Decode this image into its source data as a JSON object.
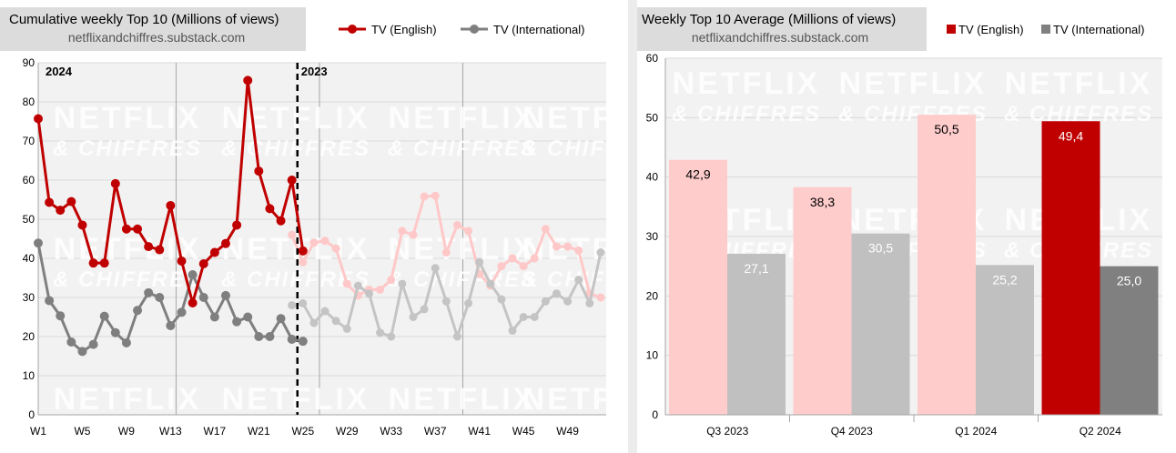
{
  "chart_data": [
    {
      "type": "line",
      "title": "Cumulative weekly Top 10 (Millions of views)",
      "subtitle": "netflixandchiffres.substack.com",
      "xlabel": "",
      "ylabel": "",
      "ylim": [
        0,
        90
      ],
      "y_ticks": [
        0,
        10,
        20,
        30,
        40,
        50,
        60,
        70,
        80,
        90
      ],
      "x_tick_labels": [
        "W1",
        "W5",
        "W9",
        "W13",
        "W17",
        "W21",
        "W25",
        "W29",
        "W33",
        "W37",
        "W41",
        "W45",
        "W49"
      ],
      "x_tick_weeks": [
        1,
        5,
        9,
        13,
        17,
        21,
        25,
        29,
        33,
        37,
        41,
        45,
        49
      ],
      "annotations": [
        {
          "text": "2024",
          "week": 1
        },
        {
          "text": "2023",
          "week": 24.5
        }
      ],
      "grid": true,
      "legend": "top-right",
      "series": [
        {
          "name": "TV (English)",
          "color": "#c00000",
          "faded_color": "#ffc8c8",
          "current_year": [
            [
              1,
              75.7
            ],
            [
              2,
              54.3
            ],
            [
              3,
              52.3
            ],
            [
              4,
              54.5
            ],
            [
              5,
              48.5
            ],
            [
              6,
              38.8
            ],
            [
              7,
              38.8
            ],
            [
              8,
              59.1
            ],
            [
              9,
              47.5
            ],
            [
              10,
              47.5
            ],
            [
              11,
              43.0
            ],
            [
              12,
              42.2
            ],
            [
              13,
              53.5
            ],
            [
              14,
              39.3
            ],
            [
              15,
              28.6
            ],
            [
              16,
              38.6
            ],
            [
              17,
              41.5
            ],
            [
              18,
              43.8
            ],
            [
              19,
              48.5
            ],
            [
              20,
              85.5
            ],
            [
              21,
              62.3
            ],
            [
              22,
              52.7
            ],
            [
              23,
              49.6
            ],
            [
              24,
              60.0
            ],
            [
              25,
              41.9
            ]
          ],
          "previous_year": [
            [
              24,
              46.0
            ],
            [
              25,
              39.0
            ],
            [
              26,
              44.0
            ],
            [
              27,
              44.5
            ],
            [
              28,
              42.5
            ],
            [
              29,
              33.5
            ],
            [
              30,
              30.5
            ],
            [
              31,
              32.0
            ],
            [
              32,
              32.0
            ],
            [
              33,
              34.5
            ],
            [
              34,
              47.0
            ],
            [
              35,
              46.0
            ],
            [
              36,
              55.8
            ],
            [
              37,
              56.0
            ],
            [
              38,
              41.5
            ],
            [
              39,
              48.5
            ],
            [
              40,
              47.0
            ],
            [
              41,
              36.0
            ],
            [
              42,
              33.0
            ],
            [
              43,
              38.0
            ],
            [
              44,
              40.0
            ],
            [
              45,
              38.0
            ],
            [
              46,
              40.0
            ],
            [
              47,
              47.5
            ],
            [
              48,
              43.0
            ],
            [
              49,
              43.0
            ],
            [
              50,
              42.0
            ],
            [
              51,
              31.0
            ],
            [
              52,
              30.0
            ]
          ]
        },
        {
          "name": "TV (International)",
          "color": "#7f7f7f",
          "faded_color": "#c4c4c4",
          "current_year": [
            [
              1,
              43.9
            ],
            [
              2,
              29.2
            ],
            [
              3,
              25.3
            ],
            [
              4,
              18.6
            ],
            [
              5,
              16.2
            ],
            [
              6,
              18.0
            ],
            [
              7,
              25.2
            ],
            [
              8,
              21.0
            ],
            [
              9,
              18.4
            ],
            [
              10,
              26.7
            ],
            [
              11,
              31.2
            ],
            [
              12,
              30.0
            ],
            [
              13,
              22.8
            ],
            [
              14,
              26.2
            ],
            [
              15,
              35.8
            ],
            [
              16,
              30.0
            ],
            [
              17,
              25.0
            ],
            [
              18,
              30.5
            ],
            [
              19,
              23.8
            ],
            [
              20,
              25.0
            ],
            [
              21,
              20.0
            ],
            [
              22,
              20.0
            ],
            [
              23,
              24.6
            ],
            [
              24,
              19.3
            ],
            [
              25,
              18.8
            ]
          ],
          "previous_year": [
            [
              24,
              28.0
            ],
            [
              25,
              28.5
            ],
            [
              26,
              23.5
            ],
            [
              27,
              26.5
            ],
            [
              28,
              24.0
            ],
            [
              29,
              22.0
            ],
            [
              30,
              33.0
            ],
            [
              31,
              31.0
            ],
            [
              32,
              21.0
            ],
            [
              33,
              20.0
            ],
            [
              34,
              33.5
            ],
            [
              35,
              25.0
            ],
            [
              36,
              27.0
            ],
            [
              37,
              37.5
            ],
            [
              38,
              29.0
            ],
            [
              39,
              20.0
            ],
            [
              40,
              28.5
            ],
            [
              41,
              39.0
            ],
            [
              42,
              33.5
            ],
            [
              43,
              29.5
            ],
            [
              44,
              21.5
            ],
            [
              45,
              25.0
            ],
            [
              46,
              25.0
            ],
            [
              47,
              29.0
            ],
            [
              48,
              31.0
            ],
            [
              49,
              29.0
            ],
            [
              50,
              34.5
            ],
            [
              51,
              28.5
            ],
            [
              52,
              41.5
            ]
          ]
        }
      ]
    },
    {
      "type": "bar",
      "title": "Weekly Top 10 Average (Millions of views)",
      "subtitle": "netflixandchiffres.substack.com",
      "xlabel": "",
      "ylabel": "",
      "ylim": [
        0,
        60
      ],
      "y_ticks": [
        0,
        10,
        20,
        30,
        40,
        50,
        60
      ],
      "categories": [
        "Q3 2023",
        "Q4 2023",
        "Q1 2024",
        "Q2 2024"
      ],
      "grid": true,
      "legend": "top-right",
      "highlighted_category": "Q2 2024",
      "series": [
        {
          "name": "TV (English)",
          "values": [
            42.9,
            38.3,
            50.5,
            49.4
          ],
          "labels": [
            "42,9",
            "38,3",
            "50,5",
            "49,4"
          ],
          "color": "#c00000",
          "faded_color": "#ffcccc"
        },
        {
          "name": "TV (International)",
          "values": [
            27.1,
            30.5,
            25.2,
            25.0
          ],
          "labels": [
            "27,1",
            "30,5",
            "25,2",
            "25,0"
          ],
          "color": "#808080",
          "faded_color": "#c0c0c0"
        }
      ]
    }
  ],
  "watermark": {
    "line1": "NETFLIX",
    "line2": "& CHIFFRES"
  }
}
